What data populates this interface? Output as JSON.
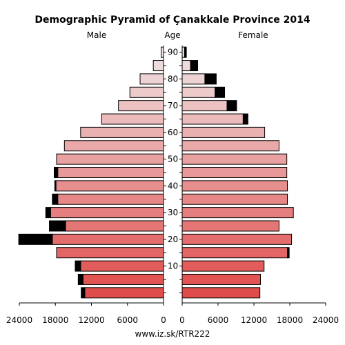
{
  "chart_data": {
    "type": "bar",
    "title": "Demographic Pyramid of Çanakkale Province 2014",
    "left_label": "Male",
    "center_label": "Age",
    "right_label": "Female",
    "footer": "www.iz.sk/RTR222",
    "age_ticks": [
      "10",
      "20",
      "30",
      "40",
      "50",
      "60",
      "70",
      "80",
      "90"
    ],
    "x_ticks_left": [
      "24000",
      "18000",
      "12000",
      "6000",
      "0"
    ],
    "x_ticks_right": [
      "0",
      "6000",
      "12000",
      "18000",
      "24000"
    ],
    "xlim": [
      0,
      24000
    ],
    "age_groups": [
      "0-4",
      "5-9",
      "10-14",
      "15-19",
      "20-24",
      "25-29",
      "30-34",
      "35-39",
      "40-44",
      "45-49",
      "50-54",
      "55-59",
      "60-64",
      "65-69",
      "70-74",
      "75-79",
      "80-84",
      "85-89",
      "90+"
    ],
    "series": [
      {
        "name": "Male",
        "values": [
          13100,
          13400,
          13800,
          17800,
          18500,
          16300,
          18800,
          17600,
          17900,
          17600,
          17800,
          16500,
          13800,
          10300,
          7500,
          5600,
          3900,
          1700,
          400
        ]
      },
      {
        "name": "Male excess",
        "values": [
          600,
          800,
          900,
          0,
          5600,
          2700,
          800,
          900,
          200,
          600,
          0,
          0,
          0,
          0,
          0,
          0,
          0,
          0,
          0
        ]
      },
      {
        "name": "Female",
        "values": [
          13000,
          13100,
          13700,
          17600,
          18300,
          16200,
          18600,
          17600,
          17600,
          17500,
          17500,
          16200,
          13800,
          10200,
          7500,
          5500,
          3800,
          1400,
          400
        ]
      },
      {
        "name": "Female excess",
        "values": [
          0,
          0,
          0,
          300,
          0,
          0,
          0,
          0,
          0,
          0,
          0,
          0,
          0,
          800,
          1600,
          1600,
          1900,
          1200,
          300
        ]
      }
    ],
    "colors": {
      "young": "#e04b4b",
      "old": "#efe4e4",
      "excess": "#000000",
      "stroke": "#000000"
    }
  }
}
